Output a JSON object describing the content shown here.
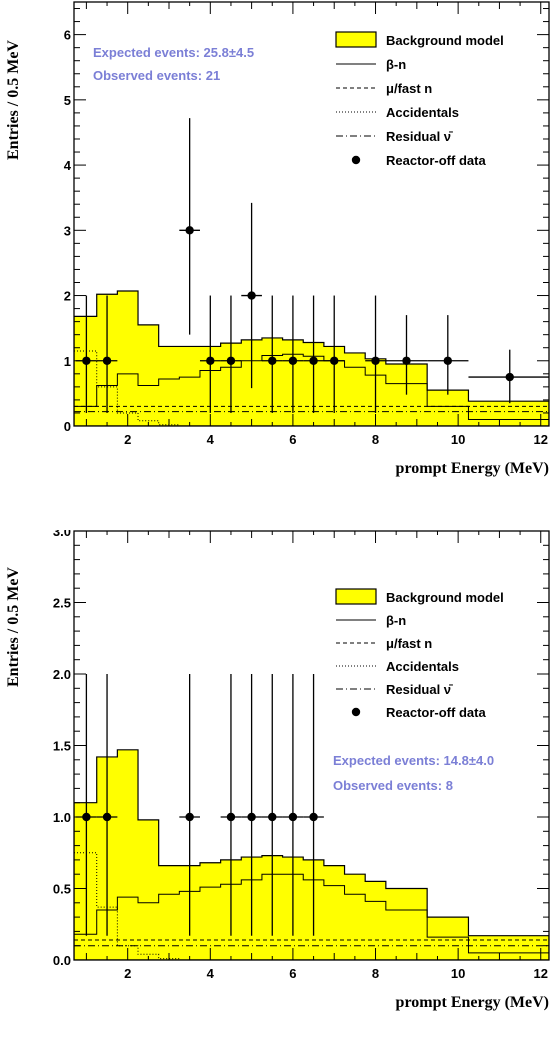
{
  "chart_data": [
    {
      "type": "bar",
      "xlabel": "prompt Energy (MeV)",
      "ylabel": "Entries / 0.5 MeV",
      "xlim": [
        0.7,
        12.2
      ],
      "ylim": [
        0,
        6.5
      ],
      "xticks": [
        2,
        4,
        6,
        8,
        10,
        12
      ],
      "xtick_labels": [
        "2",
        "4",
        "6",
        "8",
        "10",
        "12"
      ],
      "yticks": [
        0,
        1,
        2,
        3,
        4,
        5,
        6
      ],
      "ytick_labels": [
        "0",
        "1",
        "2",
        "3",
        "4",
        "5",
        "6"
      ],
      "bin_edges": [
        0.7,
        1.25,
        1.75,
        2.25,
        2.75,
        3.25,
        3.75,
        4.25,
        4.75,
        5.25,
        5.75,
        6.25,
        6.75,
        7.25,
        7.75,
        8.25,
        9.25,
        10.25,
        12.2
      ],
      "series": [
        {
          "name": "Background model",
          "style": "filled",
          "values": [
            1.68,
            2.02,
            2.07,
            1.55,
            1.22,
            1.22,
            1.22,
            1.27,
            1.32,
            1.35,
            1.32,
            1.28,
            1.22,
            1.12,
            1.03,
            0.95,
            0.55,
            0.38
          ]
        },
        {
          "name": "β-n",
          "style": "solid",
          "values": [
            0.3,
            0.62,
            0.8,
            0.62,
            0.72,
            0.75,
            0.85,
            0.9,
            1.0,
            1.08,
            1.1,
            1.07,
            1.0,
            0.9,
            0.78,
            0.65,
            0.3,
            0.1
          ]
        },
        {
          "name": "μ/fast n",
          "style": "dashed",
          "values": [
            0.3,
            0.3,
            0.3,
            0.3,
            0.3,
            0.3,
            0.3,
            0.3,
            0.3,
            0.3,
            0.3,
            0.3,
            0.3,
            0.3,
            0.3,
            0.3,
            0.3,
            0.3
          ]
        },
        {
          "name": "Accidentals",
          "style": "dotted",
          "values": [
            1.15,
            0.6,
            0.2,
            0.08,
            0.02,
            0.0,
            0.0,
            0.0,
            0.0,
            0.0,
            0.0,
            0.0,
            0.0,
            0.0,
            0.0,
            0.0,
            0.0,
            0.0
          ]
        },
        {
          "name": "Residual ν̄",
          "style": "dashdot",
          "values": [
            0.22,
            0.22,
            0.22,
            0.22,
            0.22,
            0.22,
            0.22,
            0.22,
            0.22,
            0.22,
            0.22,
            0.22,
            0.22,
            0.22,
            0.22,
            0.22,
            0.22,
            0.22
          ]
        }
      ],
      "data_points": {
        "name": "Reactor-off data",
        "points": [
          {
            "x": 1.0,
            "y": 1,
            "xerr": 0.25,
            "yerr_low": 0.8,
            "yerr_high": 1.0
          },
          {
            "x": 1.5,
            "y": 1,
            "xerr": 0.25,
            "yerr_low": 0.8,
            "yerr_high": 1.0
          },
          {
            "x": 3.5,
            "y": 3,
            "xerr": 0.25,
            "yerr_low": 1.6,
            "yerr_high": 1.72
          },
          {
            "x": 4.0,
            "y": 1,
            "xerr": 0.25,
            "yerr_low": 0.8,
            "yerr_high": 1.0
          },
          {
            "x": 4.5,
            "y": 1,
            "xerr": 0.25,
            "yerr_low": 0.8,
            "yerr_high": 1.0
          },
          {
            "x": 5.0,
            "y": 2,
            "xerr": 0.25,
            "yerr_low": 1.42,
            "yerr_high": 1.42
          },
          {
            "x": 5.5,
            "y": 1,
            "xerr": 0.25,
            "yerr_low": 0.8,
            "yerr_high": 1.0
          },
          {
            "x": 6.0,
            "y": 1,
            "xerr": 0.25,
            "yerr_low": 0.8,
            "yerr_high": 1.0
          },
          {
            "x": 6.5,
            "y": 1,
            "xerr": 0.25,
            "yerr_low": 0.8,
            "yerr_high": 1.0
          },
          {
            "x": 7.0,
            "y": 1,
            "xerr": 0.25,
            "yerr_low": 0.8,
            "yerr_high": 1.0
          },
          {
            "x": 8.0,
            "y": 1,
            "xerr": 0.25,
            "yerr_low": 0.8,
            "yerr_high": 1.0
          },
          {
            "x": 8.75,
            "y": 1,
            "xerr": 0.5,
            "yerr_low": 0.52,
            "yerr_high": 0.7
          },
          {
            "x": 9.75,
            "y": 1,
            "xerr": 0.5,
            "yerr_low": 0.52,
            "yerr_high": 0.7
          },
          {
            "x": 11.25,
            "y": 0.75,
            "xerr": 1.0,
            "yerr_low": 0.4,
            "yerr_high": 0.42
          }
        ]
      },
      "annotations": [
        "Expected events: 25.8±4.5",
        "Observed events: 21"
      ],
      "annotation_position": "top-left",
      "legend_position": "top-right",
      "grid": false
    },
    {
      "type": "bar",
      "xlabel": "prompt Energy (MeV)",
      "ylabel": "Entries / 0.5 MeV",
      "xlim": [
        0.7,
        12.2
      ],
      "ylim": [
        0,
        3.0
      ],
      "xticks": [
        2,
        4,
        6,
        8,
        10,
        12
      ],
      "xtick_labels": [
        "2",
        "4",
        "6",
        "8",
        "10",
        "12"
      ],
      "yticks": [
        0,
        0.5,
        1.0,
        1.5,
        2.0,
        2.5,
        3.0
      ],
      "ytick_labels": [
        "0.0",
        "0.5",
        "1.0",
        "1.5",
        "2.0",
        "2.5",
        "3.0"
      ],
      "bin_edges": [
        0.7,
        1.25,
        1.75,
        2.25,
        2.75,
        3.25,
        3.75,
        4.25,
        4.75,
        5.25,
        5.75,
        6.25,
        6.75,
        7.25,
        7.75,
        8.25,
        9.25,
        10.25,
        12.2
      ],
      "series": [
        {
          "name": "Background model",
          "style": "filled",
          "values": [
            1.1,
            1.42,
            1.47,
            0.98,
            0.66,
            0.66,
            0.68,
            0.7,
            0.72,
            0.73,
            0.72,
            0.7,
            0.66,
            0.6,
            0.55,
            0.5,
            0.3,
            0.17
          ]
        },
        {
          "name": "β-n",
          "style": "solid",
          "values": [
            0.18,
            0.35,
            0.44,
            0.4,
            0.46,
            0.48,
            0.51,
            0.53,
            0.56,
            0.6,
            0.6,
            0.56,
            0.52,
            0.46,
            0.41,
            0.35,
            0.16,
            0.05
          ]
        },
        {
          "name": "μ/fast n",
          "style": "dashed",
          "values": [
            0.14,
            0.14,
            0.14,
            0.14,
            0.14,
            0.14,
            0.14,
            0.14,
            0.14,
            0.14,
            0.14,
            0.14,
            0.14,
            0.14,
            0.14,
            0.14,
            0.14,
            0.14
          ]
        },
        {
          "name": "Accidentals",
          "style": "dotted",
          "values": [
            0.75,
            0.37,
            0.1,
            0.04,
            0.01,
            0.0,
            0.0,
            0.0,
            0.0,
            0.0,
            0.0,
            0.0,
            0.0,
            0.0,
            0.0,
            0.0,
            0.0,
            0.0
          ]
        },
        {
          "name": "Residual ν̄",
          "style": "dashdot",
          "values": [
            0.1,
            0.1,
            0.1,
            0.1,
            0.1,
            0.1,
            0.1,
            0.1,
            0.1,
            0.1,
            0.1,
            0.1,
            0.1,
            0.1,
            0.1,
            0.1,
            0.1,
            0.1
          ]
        }
      ],
      "data_points": {
        "name": "Reactor-off data",
        "points": [
          {
            "x": 1.0,
            "y": 1,
            "xerr": 0.25,
            "yerr_low": 0.83,
            "yerr_high": 1.0
          },
          {
            "x": 1.5,
            "y": 1,
            "xerr": 0.25,
            "yerr_low": 0.83,
            "yerr_high": 1.0
          },
          {
            "x": 3.5,
            "y": 1,
            "xerr": 0.25,
            "yerr_low": 0.83,
            "yerr_high": 1.0
          },
          {
            "x": 4.5,
            "y": 1,
            "xerr": 0.25,
            "yerr_low": 0.83,
            "yerr_high": 1.0
          },
          {
            "x": 5.0,
            "y": 1,
            "xerr": 0.25,
            "yerr_low": 0.83,
            "yerr_high": 1.0
          },
          {
            "x": 5.5,
            "y": 1,
            "xerr": 0.25,
            "yerr_low": 0.83,
            "yerr_high": 1.0
          },
          {
            "x": 6.0,
            "y": 1,
            "xerr": 0.25,
            "yerr_low": 0.83,
            "yerr_high": 1.0
          },
          {
            "x": 6.5,
            "y": 1,
            "xerr": 0.25,
            "yerr_low": 0.83,
            "yerr_high": 1.0
          }
        ]
      },
      "annotations": [
        "Expected events: 14.8±4.0",
        "Observed events: 8"
      ],
      "annotation_position": "middle-right",
      "legend_position": "top-right",
      "grid": false
    }
  ],
  "colors": {
    "background_fill": "#ffff00",
    "annotation_text": "#7b7fd6",
    "ink": "#000000"
  }
}
